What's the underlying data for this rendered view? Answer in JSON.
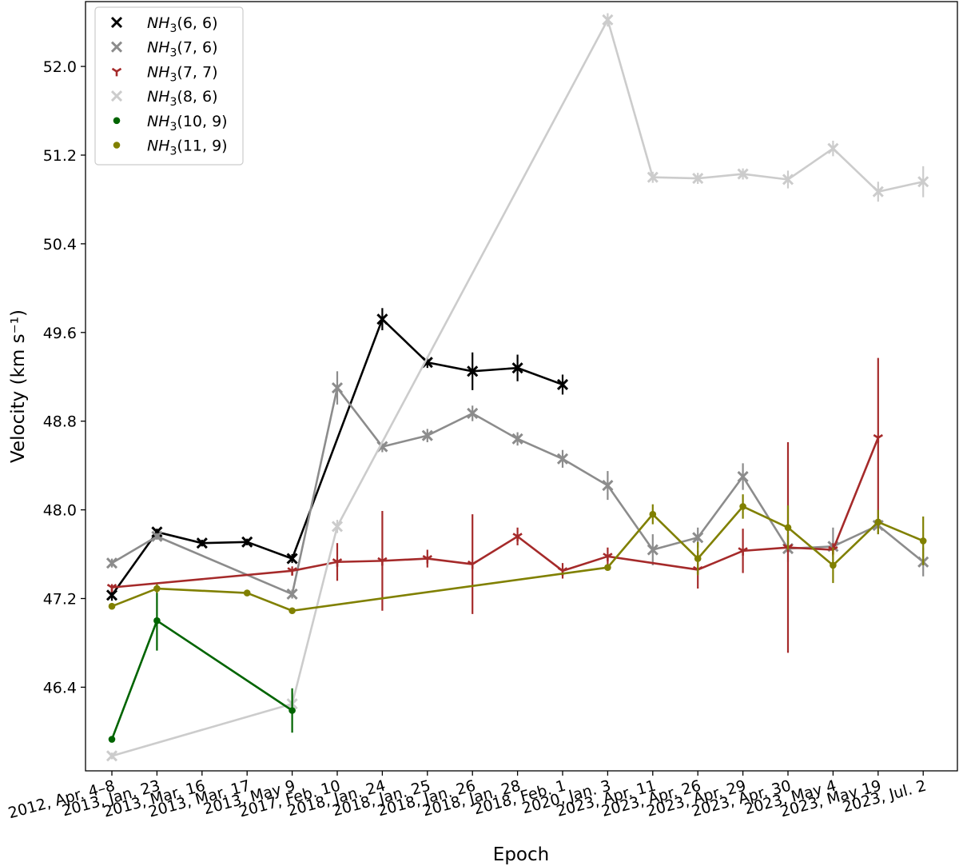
{
  "chart_data": {
    "type": "line",
    "title": "",
    "xlabel": "Epoch",
    "ylabel": "Velocity (km s⁻¹)",
    "ylim": [
      45.65,
      52.65
    ],
    "yticks": [
      46.4,
      47.2,
      48.0,
      48.8,
      49.6,
      50.4,
      51.2,
      52.0
    ],
    "ytick_labels": [
      "46.4",
      "47.2",
      "48.0",
      "48.8",
      "49.6",
      "50.4",
      "51.2",
      "52.0"
    ],
    "categories": [
      "2012, Apr. 4–8",
      "2013, Jan. 23",
      "2013, Mar. 16",
      "2013, Mar. 17",
      "2013, May 9",
      "2017, Feb. 10",
      "2018, Jan. 24",
      "2018, Jan. 25",
      "2018, Jan. 26",
      "2018, Jan. 28",
      "2018, Feb. 1",
      "2020, Jan. 3",
      "2023, Apr. 11",
      "2023, Apr. 26",
      "2023, Apr. 29",
      "2023, Apr. 30",
      "2023, May 4",
      "2023, May 19",
      "2023, Jul. 2"
    ],
    "legend_position": "top-left",
    "series": [
      {
        "name": "NH3(6,6)",
        "base": "NH",
        "sub": "3",
        "tail": "(6, 6)",
        "color": "#000000",
        "marker": "x",
        "points": [
          [
            0,
            47.23,
            0.05
          ],
          [
            1,
            47.8,
            0.03
          ],
          [
            2,
            47.7,
            0.03
          ],
          [
            3,
            47.71,
            0.03
          ],
          [
            4,
            47.56,
            0.04
          ],
          [
            6,
            49.72,
            0.1
          ],
          [
            7,
            49.33,
            0.05
          ],
          [
            8,
            49.25,
            0.17
          ],
          [
            9,
            49.28,
            0.12
          ],
          [
            10,
            49.13,
            0.09
          ]
        ]
      },
      {
        "name": "NH3(7,6)",
        "base": "NH",
        "sub": "3",
        "tail": "(7, 6)",
        "color": "#8c8c8c",
        "marker": "x",
        "points": [
          [
            0,
            47.52,
            0.04
          ],
          [
            1,
            47.76,
            0.03
          ],
          [
            4,
            47.24,
            0.04
          ],
          [
            5,
            49.1,
            0.15
          ],
          [
            6,
            48.57,
            0.05
          ],
          [
            7,
            48.67,
            0.06
          ],
          [
            8,
            48.87,
            0.07
          ],
          [
            9,
            48.64,
            0.06
          ],
          [
            10,
            48.46,
            0.08
          ],
          [
            11,
            48.22,
            0.13
          ],
          [
            12,
            47.64,
            0.14
          ],
          [
            13,
            47.75,
            0.09
          ],
          [
            14,
            48.3,
            0.12
          ],
          [
            15,
            47.65,
            0.12
          ],
          [
            16,
            47.67,
            0.17
          ],
          [
            17,
            47.86,
            0.08
          ],
          [
            18,
            47.53,
            0.13
          ]
        ]
      },
      {
        "name": "NH3(7,7)",
        "base": "NH",
        "sub": "3",
        "tail": "(7, 7)",
        "color": "#a52a2a",
        "marker": "tri",
        "points": [
          [
            0,
            47.3,
            0.03
          ],
          [
            4,
            47.45,
            0.04
          ],
          [
            5,
            47.53,
            0.17
          ],
          [
            6,
            47.54,
            0.45
          ],
          [
            7,
            47.56,
            0.08
          ],
          [
            8,
            47.51,
            0.45
          ],
          [
            9,
            47.76,
            0.08
          ],
          [
            10,
            47.45,
            0.07
          ],
          [
            11,
            47.58,
            0.08
          ],
          [
            13,
            47.46,
            0.17
          ],
          [
            14,
            47.63,
            0.2
          ],
          [
            15,
            47.66,
            0.95
          ],
          [
            16,
            47.64,
            0.06
          ],
          [
            17,
            48.65,
            0.72
          ]
        ]
      },
      {
        "name": "NH3(8,6)",
        "base": "NH",
        "sub": "3",
        "tail": "(8, 6)",
        "color": "#cccccc",
        "marker": "x",
        "points": [
          [
            0,
            45.78,
            0.03
          ],
          [
            4,
            46.25,
            0.1
          ],
          [
            5,
            47.85,
            0.06
          ],
          [
            11,
            52.42,
            0.06
          ],
          [
            12,
            51.0,
            0.05
          ],
          [
            13,
            50.99,
            0.05
          ],
          [
            14,
            51.03,
            0.05
          ],
          [
            15,
            50.98,
            0.08
          ],
          [
            16,
            51.26,
            0.07
          ],
          [
            17,
            50.87,
            0.09
          ],
          [
            18,
            50.96,
            0.14
          ]
        ]
      },
      {
        "name": "NH3(10,9)",
        "base": "NH",
        "sub": "3",
        "tail": "(10, 9)",
        "color": "#006400",
        "marker": "dot",
        "points": [
          [
            0,
            45.93,
            0.0
          ],
          [
            1,
            47.0,
            0.27
          ],
          [
            4,
            46.19,
            0.2
          ]
        ]
      },
      {
        "name": "NH3(11,9)",
        "base": "NH",
        "sub": "3",
        "tail": "(11, 9)",
        "color": "#808000",
        "marker": "dot",
        "points": [
          [
            0,
            47.13,
            0.0
          ],
          [
            1,
            47.29,
            0.04
          ],
          [
            3,
            47.25,
            0.0
          ],
          [
            4,
            47.09,
            0.0
          ],
          [
            11,
            47.48,
            0.0
          ],
          [
            12,
            47.96,
            0.09
          ],
          [
            13,
            47.56,
            0.15
          ],
          [
            14,
            48.03,
            0.11
          ],
          [
            15,
            47.84,
            0.2
          ],
          [
            16,
            47.5,
            0.16
          ],
          [
            17,
            47.89,
            0.11
          ],
          [
            18,
            47.72,
            0.22
          ]
        ]
      }
    ]
  }
}
